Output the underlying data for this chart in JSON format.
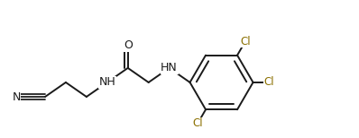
{
  "bg_color": "#ffffff",
  "bond_color": "#1a1a1a",
  "cl_color": "#8b7000",
  "n_color": "#1a1a1a",
  "o_color": "#1a1a1a",
  "lw": 1.4,
  "figsize": [
    3.98,
    1.54
  ],
  "dpi": 100,
  "xlim": [
    0,
    398
  ],
  "ylim": [
    0,
    154
  ]
}
